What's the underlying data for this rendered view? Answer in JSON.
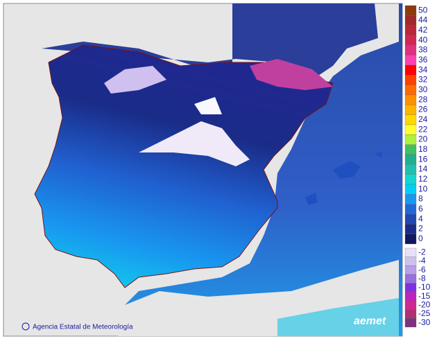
{
  "map": {
    "credit": "Agencia Estatal de Meteorología",
    "logo": "aemet",
    "legend_upper": [
      {
        "value": 50,
        "color": "#8b3a0f"
      },
      {
        "value": 44,
        "color": "#a0282a"
      },
      {
        "value": 42,
        "color": "#b82838"
      },
      {
        "value": 40,
        "color": "#d02850"
      },
      {
        "value": 38,
        "color": "#e03080"
      },
      {
        "value": 36,
        "color": "#ff40b0"
      },
      {
        "value": 34,
        "color": "#ff0000"
      },
      {
        "value": 32,
        "color": "#ff4000"
      },
      {
        "value": 30,
        "color": "#ff6a00"
      },
      {
        "value": 28,
        "color": "#ff9000"
      },
      {
        "value": 26,
        "color": "#ffb400"
      },
      {
        "value": 24,
        "color": "#ffd800"
      },
      {
        "value": 22,
        "color": "#ffff30"
      },
      {
        "value": 20,
        "color": "#b0f040"
      },
      {
        "value": 18,
        "color": "#40c060"
      },
      {
        "value": 16,
        "color": "#20b090"
      },
      {
        "value": 14,
        "color": "#20c0b0"
      },
      {
        "value": 12,
        "color": "#10d8d0"
      },
      {
        "value": 10,
        "color": "#00d0f8"
      },
      {
        "value": 8,
        "color": "#1898f0"
      },
      {
        "value": 6,
        "color": "#2068d8"
      },
      {
        "value": 4,
        "color": "#2048b0"
      },
      {
        "value": 2,
        "color": "#1a2c88"
      },
      {
        "value": 0,
        "color": "#101860"
      }
    ],
    "legend_lower": [
      {
        "value": -2,
        "color": "#e8e0f8"
      },
      {
        "value": -4,
        "color": "#d0c0f0"
      },
      {
        "value": -6,
        "color": "#b8a0e8"
      },
      {
        "value": -8,
        "color": "#9870e0"
      },
      {
        "value": -10,
        "color": "#8030e0"
      },
      {
        "value": -15,
        "color": "#c020c0"
      },
      {
        "value": -20,
        "color": "#d02890"
      },
      {
        "value": -25,
        "color": "#b03070"
      },
      {
        "value": -30,
        "color": "#803080"
      }
    ]
  }
}
